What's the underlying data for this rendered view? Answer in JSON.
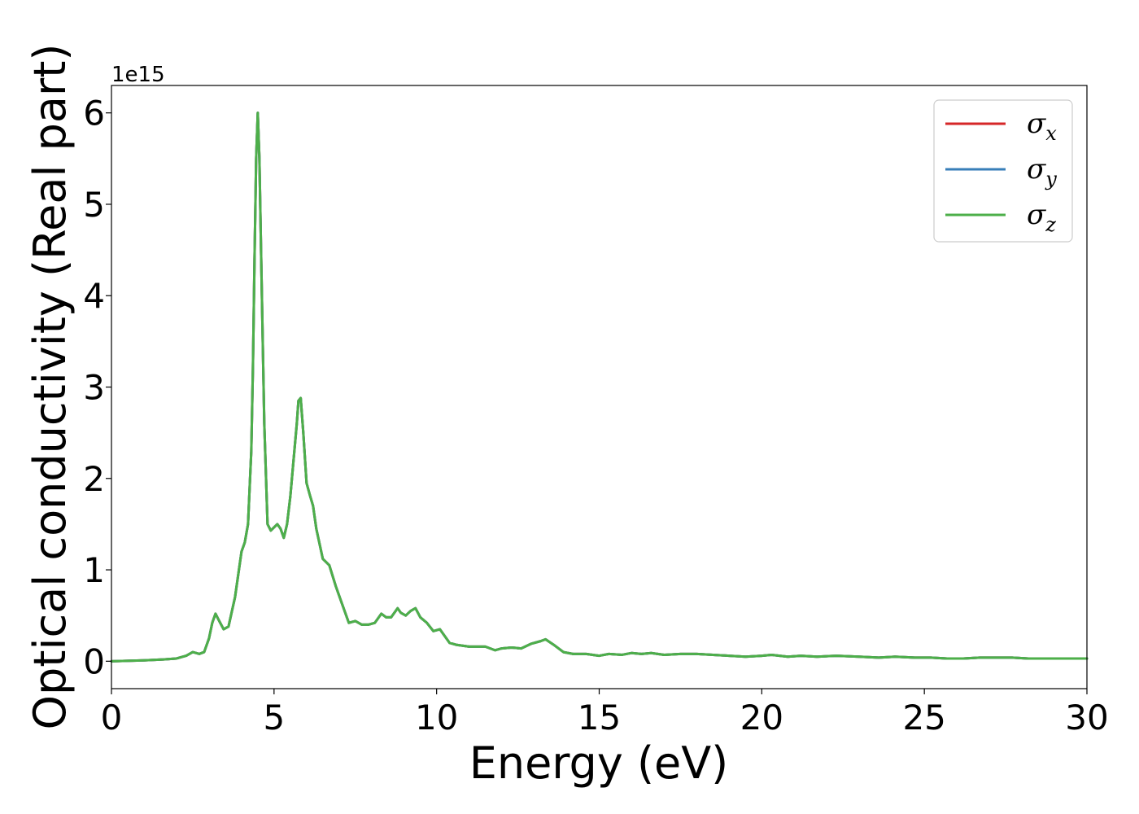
{
  "chart_data": {
    "type": "line",
    "title": "",
    "xlabel": "Energy (eV)",
    "ylabel": "Optical conductivity (Real part)",
    "y_offset_label": "1e15",
    "xlim": [
      0,
      30
    ],
    "ylim": [
      -0.3,
      6.3
    ],
    "xticks": [
      0,
      5,
      10,
      15,
      20,
      25,
      30
    ],
    "yticks": [
      0,
      1,
      2,
      3,
      4,
      5,
      6
    ],
    "grid": false,
    "legend_position": "top-right",
    "series": [
      {
        "name": "σx",
        "legend_base": "σ",
        "legend_sub": "x",
        "color": "#d62728",
        "x": [
          0,
          1.0,
          1.6,
          2.0,
          2.3,
          2.5,
          2.7,
          2.85,
          3.0,
          3.1,
          3.2,
          3.3,
          3.45,
          3.6,
          3.8,
          4.0,
          4.1,
          4.2,
          4.3,
          4.35,
          4.4,
          4.45,
          4.5,
          4.55,
          4.6,
          4.7,
          4.8,
          4.9,
          5.1,
          5.2,
          5.3,
          5.4,
          5.5,
          5.6,
          5.7,
          5.75,
          5.82,
          5.9,
          6.0,
          6.1,
          6.2,
          6.3,
          6.5,
          6.7,
          6.9,
          7.1,
          7.3,
          7.5,
          7.7,
          7.9,
          8.1,
          8.3,
          8.45,
          8.6,
          8.8,
          8.9,
          9.05,
          9.2,
          9.35,
          9.5,
          9.7,
          9.9,
          10.1,
          10.2,
          10.4,
          10.6,
          11.0,
          11.5,
          11.8,
          12.0,
          12.3,
          12.6,
          12.9,
          13.2,
          13.35,
          13.6,
          13.9,
          14.2,
          14.6,
          15.0,
          15.3,
          15.7,
          16.0,
          16.3,
          16.6,
          17.0,
          17.5,
          18.0,
          18.5,
          19.0,
          19.5,
          20.0,
          20.3,
          20.8,
          21.2,
          21.7,
          22.3,
          23.0,
          23.6,
          24.1,
          24.7,
          25.2,
          25.7,
          26.2,
          26.7,
          27.2,
          27.7,
          28.2,
          28.7,
          29.2,
          29.6,
          30.0
        ],
        "y": [
          0.0,
          0.01,
          0.02,
          0.03,
          0.06,
          0.1,
          0.08,
          0.1,
          0.25,
          0.42,
          0.52,
          0.45,
          0.35,
          0.38,
          0.7,
          1.2,
          1.3,
          1.5,
          2.3,
          3.2,
          4.4,
          5.5,
          6.0,
          5.5,
          4.5,
          2.6,
          1.5,
          1.43,
          1.5,
          1.45,
          1.35,
          1.5,
          1.8,
          2.2,
          2.6,
          2.85,
          2.88,
          2.5,
          1.95,
          1.82,
          1.7,
          1.45,
          1.12,
          1.05,
          0.82,
          0.62,
          0.42,
          0.44,
          0.4,
          0.4,
          0.42,
          0.52,
          0.48,
          0.48,
          0.58,
          0.53,
          0.5,
          0.55,
          0.58,
          0.48,
          0.42,
          0.33,
          0.35,
          0.3,
          0.2,
          0.18,
          0.16,
          0.16,
          0.12,
          0.14,
          0.15,
          0.14,
          0.19,
          0.22,
          0.24,
          0.18,
          0.1,
          0.08,
          0.08,
          0.06,
          0.08,
          0.07,
          0.09,
          0.08,
          0.09,
          0.07,
          0.08,
          0.08,
          0.07,
          0.06,
          0.05,
          0.06,
          0.07,
          0.05,
          0.06,
          0.05,
          0.06,
          0.05,
          0.04,
          0.05,
          0.04,
          0.04,
          0.03,
          0.03,
          0.04,
          0.04,
          0.04,
          0.03,
          0.03,
          0.03,
          0.03,
          0.03
        ]
      },
      {
        "name": "σy",
        "legend_base": "σ",
        "legend_sub": "y",
        "color": "#377eb8",
        "x": [
          0,
          1.0,
          1.6,
          2.0,
          2.3,
          2.5,
          2.7,
          2.85,
          3.0,
          3.1,
          3.2,
          3.3,
          3.45,
          3.6,
          3.8,
          4.0,
          4.1,
          4.2,
          4.3,
          4.35,
          4.4,
          4.45,
          4.5,
          4.55,
          4.6,
          4.7,
          4.8,
          4.9,
          5.1,
          5.2,
          5.3,
          5.4,
          5.5,
          5.6,
          5.7,
          5.75,
          5.82,
          5.9,
          6.0,
          6.1,
          6.2,
          6.3,
          6.5,
          6.7,
          6.9,
          7.1,
          7.3,
          7.5,
          7.7,
          7.9,
          8.1,
          8.3,
          8.45,
          8.6,
          8.8,
          8.9,
          9.05,
          9.2,
          9.35,
          9.5,
          9.7,
          9.9,
          10.1,
          10.2,
          10.4,
          10.6,
          11.0,
          11.5,
          11.8,
          12.0,
          12.3,
          12.6,
          12.9,
          13.2,
          13.35,
          13.6,
          13.9,
          14.2,
          14.6,
          15.0,
          15.3,
          15.7,
          16.0,
          16.3,
          16.6,
          17.0,
          17.5,
          18.0,
          18.5,
          19.0,
          19.5,
          20.0,
          20.3,
          20.8,
          21.2,
          21.7,
          22.3,
          23.0,
          23.6,
          24.1,
          24.7,
          25.2,
          25.7,
          26.2,
          26.7,
          27.2,
          27.7,
          28.2,
          28.7,
          29.2,
          29.6,
          30.0
        ],
        "y": [
          0.0,
          0.01,
          0.02,
          0.03,
          0.06,
          0.1,
          0.08,
          0.1,
          0.25,
          0.42,
          0.52,
          0.45,
          0.35,
          0.38,
          0.7,
          1.2,
          1.3,
          1.5,
          2.3,
          3.2,
          4.4,
          5.5,
          6.0,
          5.5,
          4.5,
          2.6,
          1.5,
          1.43,
          1.5,
          1.45,
          1.35,
          1.5,
          1.8,
          2.2,
          2.6,
          2.85,
          2.88,
          2.5,
          1.95,
          1.82,
          1.7,
          1.45,
          1.12,
          1.05,
          0.82,
          0.62,
          0.42,
          0.44,
          0.4,
          0.4,
          0.42,
          0.52,
          0.48,
          0.48,
          0.58,
          0.53,
          0.5,
          0.55,
          0.58,
          0.48,
          0.42,
          0.33,
          0.35,
          0.3,
          0.2,
          0.18,
          0.16,
          0.16,
          0.12,
          0.14,
          0.15,
          0.14,
          0.19,
          0.22,
          0.24,
          0.18,
          0.1,
          0.08,
          0.08,
          0.06,
          0.08,
          0.07,
          0.09,
          0.08,
          0.09,
          0.07,
          0.08,
          0.08,
          0.07,
          0.06,
          0.05,
          0.06,
          0.07,
          0.05,
          0.06,
          0.05,
          0.06,
          0.05,
          0.04,
          0.05,
          0.04,
          0.04,
          0.03,
          0.03,
          0.04,
          0.04,
          0.04,
          0.03,
          0.03,
          0.03,
          0.03,
          0.03
        ]
      },
      {
        "name": "σz",
        "legend_base": "σ",
        "legend_sub": "z",
        "color": "#4daf4a",
        "x": [
          0,
          1.0,
          1.6,
          2.0,
          2.3,
          2.5,
          2.7,
          2.85,
          3.0,
          3.1,
          3.2,
          3.3,
          3.45,
          3.6,
          3.8,
          4.0,
          4.1,
          4.2,
          4.3,
          4.35,
          4.4,
          4.45,
          4.5,
          4.55,
          4.6,
          4.7,
          4.8,
          4.9,
          5.1,
          5.2,
          5.3,
          5.4,
          5.5,
          5.6,
          5.7,
          5.75,
          5.82,
          5.9,
          6.0,
          6.1,
          6.2,
          6.3,
          6.5,
          6.7,
          6.9,
          7.1,
          7.3,
          7.5,
          7.7,
          7.9,
          8.1,
          8.3,
          8.45,
          8.6,
          8.8,
          8.9,
          9.05,
          9.2,
          9.35,
          9.5,
          9.7,
          9.9,
          10.1,
          10.2,
          10.4,
          10.6,
          11.0,
          11.5,
          11.8,
          12.0,
          12.3,
          12.6,
          12.9,
          13.2,
          13.35,
          13.6,
          13.9,
          14.2,
          14.6,
          15.0,
          15.3,
          15.7,
          16.0,
          16.3,
          16.6,
          17.0,
          17.5,
          18.0,
          18.5,
          19.0,
          19.5,
          20.0,
          20.3,
          20.8,
          21.2,
          21.7,
          22.3,
          23.0,
          23.6,
          24.1,
          24.7,
          25.2,
          25.7,
          26.2,
          26.7,
          27.2,
          27.7,
          28.2,
          28.7,
          29.2,
          29.6,
          30.0
        ],
        "y": [
          0.0,
          0.01,
          0.02,
          0.03,
          0.06,
          0.1,
          0.08,
          0.1,
          0.25,
          0.42,
          0.52,
          0.45,
          0.35,
          0.38,
          0.7,
          1.2,
          1.3,
          1.5,
          2.3,
          3.2,
          4.4,
          5.5,
          6.0,
          5.5,
          4.5,
          2.6,
          1.5,
          1.43,
          1.5,
          1.45,
          1.35,
          1.5,
          1.8,
          2.2,
          2.6,
          2.85,
          2.88,
          2.5,
          1.95,
          1.82,
          1.7,
          1.45,
          1.12,
          1.05,
          0.82,
          0.62,
          0.42,
          0.44,
          0.4,
          0.4,
          0.42,
          0.52,
          0.48,
          0.48,
          0.58,
          0.53,
          0.5,
          0.55,
          0.58,
          0.48,
          0.42,
          0.33,
          0.35,
          0.3,
          0.2,
          0.18,
          0.16,
          0.16,
          0.12,
          0.14,
          0.15,
          0.14,
          0.19,
          0.22,
          0.24,
          0.18,
          0.1,
          0.08,
          0.08,
          0.06,
          0.08,
          0.07,
          0.09,
          0.08,
          0.09,
          0.07,
          0.08,
          0.08,
          0.07,
          0.06,
          0.05,
          0.06,
          0.07,
          0.05,
          0.06,
          0.05,
          0.06,
          0.05,
          0.04,
          0.05,
          0.04,
          0.04,
          0.03,
          0.03,
          0.04,
          0.04,
          0.04,
          0.03,
          0.03,
          0.03,
          0.03,
          0.03
        ]
      }
    ]
  }
}
